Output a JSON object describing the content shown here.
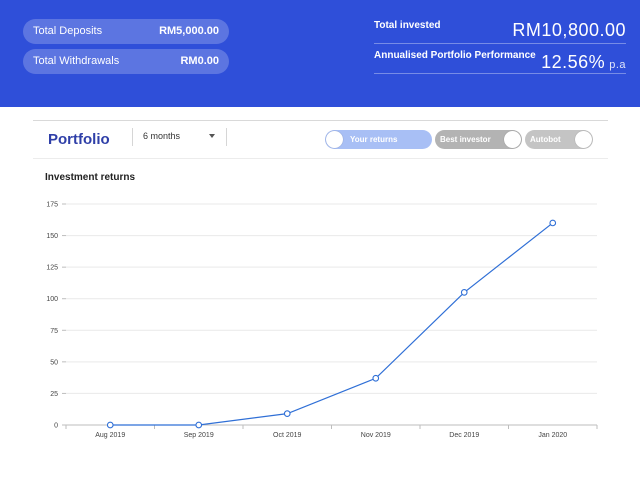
{
  "header": {
    "total_deposits": {
      "label": "Total Deposits",
      "value": "RM5,000.00"
    },
    "total_withdrawals": {
      "label": "Total Withdrawals",
      "value": "RM0.00"
    },
    "total_invested": {
      "label": "Total invested",
      "value": "RM10,800.00"
    },
    "annualised_performance": {
      "label": "Annualised Portfolio Performance",
      "value": "12.56%",
      "suffix": "p.a"
    }
  },
  "portfolio": {
    "title": "Portfolio",
    "range_selected": "6 months",
    "toggles": {
      "your_returns": "Your returns",
      "best_investor": "Best investor",
      "autobot": "Autobot"
    }
  },
  "chart_data": {
    "type": "line",
    "title": "Investment returns",
    "categories": [
      "Aug 2019",
      "Sep 2019",
      "Oct 2019",
      "Nov 2019",
      "Dec 2019",
      "Jan 2020"
    ],
    "series": [
      {
        "values": [
          0,
          0,
          9,
          37,
          105,
          160
        ]
      }
    ],
    "ylim": [
      0,
      175
    ],
    "yticks": [
      "0",
      "25",
      "50",
      "75",
      "100",
      "125",
      "150",
      "175"
    ],
    "grid": true,
    "colors": {
      "line": "#2f6fd6",
      "marker_fill": "#ffffff"
    }
  },
  "colors": {
    "header_bg": "#2f4fd9",
    "accent": "#2f3fa8"
  }
}
